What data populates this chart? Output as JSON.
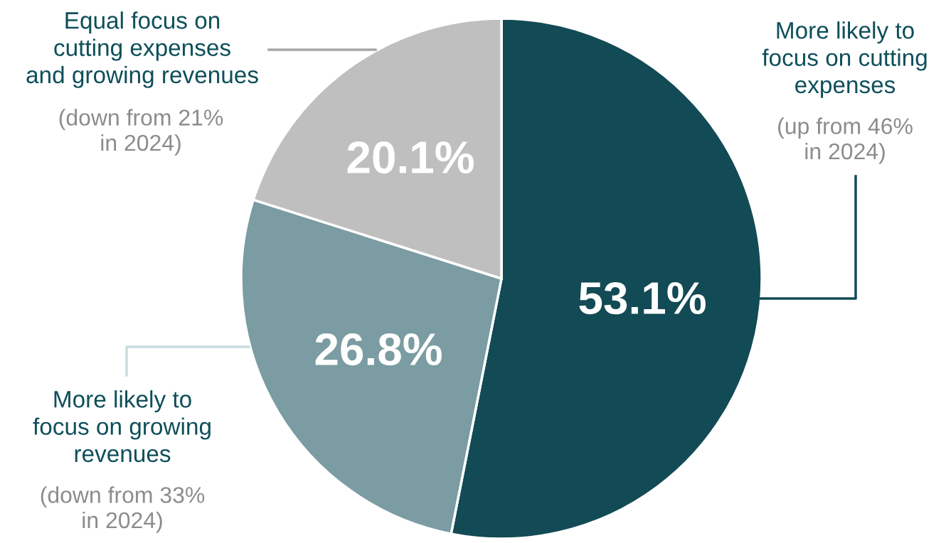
{
  "chart_data": {
    "type": "pie",
    "categories": [
      "More likely to\nfocus on cutting\nexpenses",
      "More likely to\nfocus on growing\nrevenues",
      "Equal focus on\ncutting expenses\nand growing revenues"
    ],
    "values": [
      53.1,
      26.8,
      20.1
    ],
    "colors": [
      "#124a55",
      "#7a9ca2",
      "#bfbfbf"
    ],
    "value_labels": [
      "53.1%",
      "26.8%",
      "20.1%"
    ],
    "annotations": [
      "(up from 46%\nin 2024)",
      "(down from 33%\nin 2024)",
      "(down from 21%\nin 2024)"
    ],
    "legend": false
  }
}
